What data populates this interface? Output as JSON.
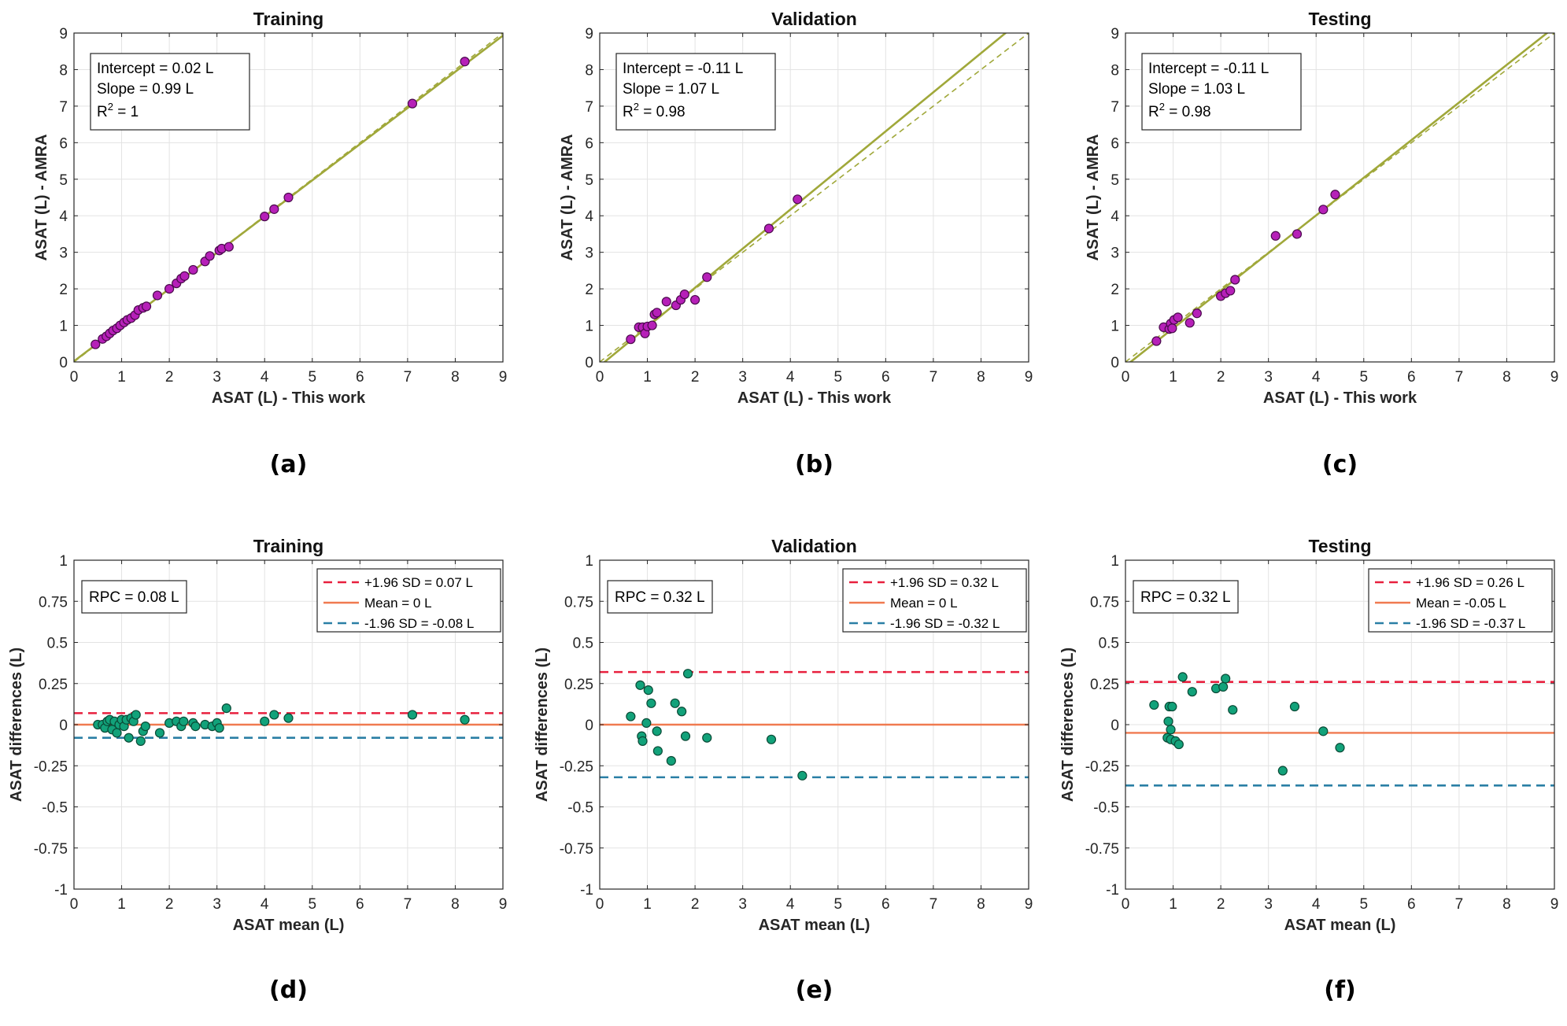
{
  "figure": {
    "panel_labels": [
      "(a)",
      "(b)",
      "(c)",
      "(d)",
      "(e)",
      "(f)"
    ]
  },
  "colors": {
    "axis": "#262626",
    "grid": "#e3e3e3",
    "fit_line": "#a0a83a",
    "scatter_fill": "#b620b8",
    "scatter_edge": "#4a0a4c",
    "ba_fill": "#12a27a",
    "ba_edge": "#0a4a36",
    "upper_loa": "#e8203e",
    "mean": "#f07a50",
    "lower_loa": "#2a7fa5"
  },
  "chart_data": [
    {
      "type": "scatter",
      "panel": "(a)",
      "title": "Training",
      "xlabel": "ASAT (L) - This work",
      "ylabel": "ASAT (L) - AMRA",
      "xlim": [
        0,
        9
      ],
      "ylim": [
        0,
        9
      ],
      "xticks": [
        0,
        1,
        2,
        3,
        4,
        5,
        6,
        7,
        8,
        9
      ],
      "yticks": [
        0,
        1,
        2,
        3,
        4,
        5,
        6,
        7,
        8,
        9
      ],
      "xtick_labels": [
        "0",
        "1",
        "2",
        "3",
        "4",
        "5",
        "6",
        "7",
        "8",
        "9"
      ],
      "ytick_labels": [
        "0",
        "1",
        "2",
        "3",
        "4",
        "5",
        "6",
        "7",
        "8",
        "9"
      ],
      "grid": true,
      "annotation": {
        "intercept": "Intercept = 0.02 L",
        "slope": "Slope = 0.99 L",
        "r2_prefix": "R",
        "r2_sup": "2",
        "r2_value": " = 1"
      },
      "fit": {
        "intercept": 0.02,
        "slope": 0.99
      },
      "identity_line": true,
      "x": [
        0.45,
        0.6,
        0.68,
        0.75,
        0.82,
        0.9,
        0.97,
        1.05,
        1.12,
        1.2,
        1.28,
        1.35,
        1.45,
        1.52,
        1.75,
        2.0,
        2.15,
        2.25,
        2.32,
        2.5,
        2.75,
        2.85,
        3.05,
        3.1,
        3.25,
        4.0,
        4.2,
        4.5,
        7.1,
        8.2
      ],
      "y": [
        0.48,
        0.63,
        0.7,
        0.78,
        0.86,
        0.92,
        1.0,
        1.08,
        1.15,
        1.2,
        1.28,
        1.42,
        1.48,
        1.52,
        1.82,
        2.0,
        2.15,
        2.28,
        2.35,
        2.52,
        2.75,
        2.9,
        3.05,
        3.1,
        3.15,
        3.98,
        4.18,
        4.5,
        7.07,
        8.22
      ]
    },
    {
      "type": "scatter",
      "panel": "(b)",
      "title": "Validation",
      "xlabel": "ASAT (L) - This work",
      "ylabel": "ASAT (L) - AMRA",
      "xlim": [
        0,
        9
      ],
      "ylim": [
        0,
        9
      ],
      "xticks": [
        0,
        1,
        2,
        3,
        4,
        5,
        6,
        7,
        8,
        9
      ],
      "yticks": [
        0,
        1,
        2,
        3,
        4,
        5,
        6,
        7,
        8,
        9
      ],
      "xtick_labels": [
        "0",
        "1",
        "2",
        "3",
        "4",
        "5",
        "6",
        "7",
        "8",
        "9"
      ],
      "ytick_labels": [
        "0",
        "1",
        "2",
        "3",
        "4",
        "5",
        "6",
        "7",
        "8",
        "9"
      ],
      "grid": true,
      "annotation": {
        "intercept": "Intercept = -0.11 L",
        "slope": "Slope = 1.07 L",
        "r2_prefix": "R",
        "r2_sup": "2",
        "r2_value": " = 0.98"
      },
      "fit": {
        "intercept": -0.11,
        "slope": 1.07
      },
      "identity_line": true,
      "x": [
        0.65,
        0.82,
        0.9,
        0.95,
        1.0,
        1.1,
        1.15,
        1.2,
        1.4,
        1.6,
        1.7,
        1.78,
        2.0,
        2.25,
        3.55,
        4.15
      ],
      "y": [
        0.62,
        0.95,
        0.95,
        0.78,
        0.97,
        1.0,
        1.3,
        1.35,
        1.65,
        1.55,
        1.7,
        1.85,
        1.7,
        2.32,
        3.65,
        4.45
      ]
    },
    {
      "type": "scatter",
      "panel": "(c)",
      "title": "Testing",
      "xlabel": "ASAT (L) - This work",
      "ylabel": "ASAT (L) - AMRA",
      "xlim": [
        0,
        9
      ],
      "ylim": [
        0,
        9
      ],
      "xticks": [
        0,
        1,
        2,
        3,
        4,
        5,
        6,
        7,
        8,
        9
      ],
      "yticks": [
        0,
        1,
        2,
        3,
        4,
        5,
        6,
        7,
        8,
        9
      ],
      "xtick_labels": [
        "0",
        "1",
        "2",
        "3",
        "4",
        "5",
        "6",
        "7",
        "8",
        "9"
      ],
      "ytick_labels": [
        "0",
        "1",
        "2",
        "3",
        "4",
        "5",
        "6",
        "7",
        "8",
        "9"
      ],
      "grid": true,
      "annotation": {
        "intercept": "Intercept = -0.11 L",
        "slope": "Slope = 1.03 L",
        "r2_prefix": "R",
        "r2_sup": "2",
        "r2_value": " = 0.98"
      },
      "fit": {
        "intercept": -0.11,
        "slope": 1.03
      },
      "identity_line": true,
      "x": [
        0.65,
        0.8,
        0.92,
        0.95,
        0.98,
        1.02,
        1.1,
        1.35,
        1.5,
        2.0,
        2.1,
        2.2,
        2.3,
        3.15,
        3.6,
        4.15,
        4.4
      ],
      "y": [
        0.57,
        0.95,
        0.9,
        1.05,
        0.92,
        1.15,
        1.22,
        1.07,
        1.33,
        1.8,
        1.88,
        1.95,
        2.25,
        3.45,
        3.5,
        4.17,
        4.58
      ]
    },
    {
      "type": "scatter",
      "panel": "(d)",
      "title": "Training",
      "xlabel": "ASAT mean (L)",
      "ylabel": "ASAT differences (L)",
      "xlim": [
        0,
        9
      ],
      "ylim": [
        -1,
        1
      ],
      "xticks": [
        0,
        1,
        2,
        3,
        4,
        5,
        6,
        7,
        8,
        9
      ],
      "yticks": [
        1,
        0.75,
        0.5,
        0.25,
        0,
        -0.25,
        -0.5,
        -0.75,
        -1
      ],
      "xtick_labels": [
        "0",
        "1",
        "2",
        "3",
        "4",
        "5",
        "6",
        "7",
        "8",
        "9"
      ],
      "ytick_labels": [
        "1",
        "0.75",
        "0.5",
        "0.25",
        "0",
        "-0.25",
        "-0.5",
        "-0.75",
        "-1"
      ],
      "grid": true,
      "rpc_label": "RPC = 0.08 L",
      "legend": [
        "+1.96 SD = 0.07 L",
        "Mean = 0 L",
        "-1.96 SD = -0.08 L"
      ],
      "upper_loa": 0.07,
      "mean": 0.0,
      "lower_loa": -0.08,
      "x": [
        0.5,
        0.6,
        0.65,
        0.7,
        0.75,
        0.8,
        0.85,
        0.9,
        0.95,
        1.0,
        1.05,
        1.1,
        1.15,
        1.2,
        1.25,
        1.3,
        1.4,
        1.45,
        1.5,
        1.8,
        2.0,
        2.15,
        2.25,
        2.3,
        2.5,
        2.55,
        2.75,
        2.9,
        3.0,
        3.05,
        3.2,
        4.0,
        4.2,
        4.5,
        7.1,
        8.2
      ],
      "y": [
        0.0,
        0.0,
        -0.02,
        0.02,
        0.03,
        -0.03,
        0.02,
        -0.05,
        0.0,
        0.03,
        -0.01,
        0.03,
        -0.08,
        0.04,
        0.02,
        0.06,
        -0.1,
        -0.04,
        -0.01,
        -0.05,
        0.01,
        0.02,
        -0.01,
        0.02,
        0.01,
        -0.01,
        0.0,
        -0.01,
        0.01,
        -0.02,
        0.1,
        0.02,
        0.06,
        0.04,
        0.06,
        0.03
      ]
    },
    {
      "type": "scatter",
      "panel": "(e)",
      "title": "Validation",
      "xlabel": "ASAT mean (L)",
      "ylabel": "ASAT differences (L)",
      "xlim": [
        0,
        9
      ],
      "ylim": [
        -1,
        1
      ],
      "xticks": [
        0,
        1,
        2,
        3,
        4,
        5,
        6,
        7,
        8,
        9
      ],
      "yticks": [
        1,
        0.75,
        0.5,
        0.25,
        0,
        -0.25,
        -0.5,
        -0.75,
        -1
      ],
      "xtick_labels": [
        "0",
        "1",
        "2",
        "3",
        "4",
        "5",
        "6",
        "7",
        "8",
        "9"
      ],
      "ytick_labels": [
        "1",
        "0.75",
        "0.5",
        "0.25",
        "0",
        "-0.25",
        "-0.5",
        "-0.75",
        "-1"
      ],
      "grid": true,
      "rpc_label": "RPC = 0.32 L",
      "legend": [
        "+1.96 SD = 0.32 L",
        "Mean = 0 L",
        "-1.96 SD = -0.32 L"
      ],
      "upper_loa": 0.32,
      "mean": 0.0,
      "lower_loa": -0.32,
      "x": [
        0.65,
        0.85,
        0.88,
        0.9,
        0.98,
        1.02,
        1.08,
        1.2,
        1.22,
        1.5,
        1.58,
        1.72,
        1.8,
        1.85,
        2.25,
        3.6,
        4.25
      ],
      "y": [
        0.05,
        0.24,
        -0.07,
        -0.1,
        0.01,
        0.21,
        0.13,
        -0.04,
        -0.16,
        -0.22,
        0.13,
        0.08,
        -0.07,
        0.31,
        -0.08,
        -0.09,
        -0.31
      ]
    },
    {
      "type": "scatter",
      "panel": "(f)",
      "title": "Testing",
      "xlabel": "ASAT mean (L)",
      "ylabel": "ASAT differences (L)",
      "xlim": [
        0,
        9
      ],
      "ylim": [
        -1,
        1
      ],
      "xticks": [
        0,
        1,
        2,
        3,
        4,
        5,
        6,
        7,
        8,
        9
      ],
      "yticks": [
        1,
        0.75,
        0.5,
        0.25,
        0,
        -0.25,
        -0.5,
        -0.75,
        -1
      ],
      "xtick_labels": [
        "0",
        "1",
        "2",
        "3",
        "4",
        "5",
        "6",
        "7",
        "8",
        "9"
      ],
      "ytick_labels": [
        "1",
        "0.75",
        "0.5",
        "0.25",
        "0",
        "-0.25",
        "-0.5",
        "-0.75",
        "-1"
      ],
      "grid": true,
      "rpc_label": "RPC = 0.32 L",
      "legend": [
        "+1.96 SD = 0.26 L",
        "Mean = -0.05 L",
        "-1.96 SD = -0.37 L"
      ],
      "upper_loa": 0.26,
      "mean": -0.05,
      "lower_loa": -0.37,
      "x": [
        0.6,
        0.88,
        0.9,
        0.92,
        0.95,
        0.95,
        0.98,
        1.05,
        1.12,
        1.2,
        1.4,
        1.9,
        2.05,
        2.1,
        2.25,
        3.3,
        3.55,
        4.15,
        4.5
      ],
      "y": [
        0.12,
        -0.08,
        0.02,
        0.11,
        -0.03,
        -0.09,
        0.11,
        -0.1,
        -0.12,
        0.29,
        0.2,
        0.22,
        0.23,
        0.28,
        0.09,
        -0.28,
        0.11,
        -0.04,
        -0.14
      ]
    }
  ]
}
